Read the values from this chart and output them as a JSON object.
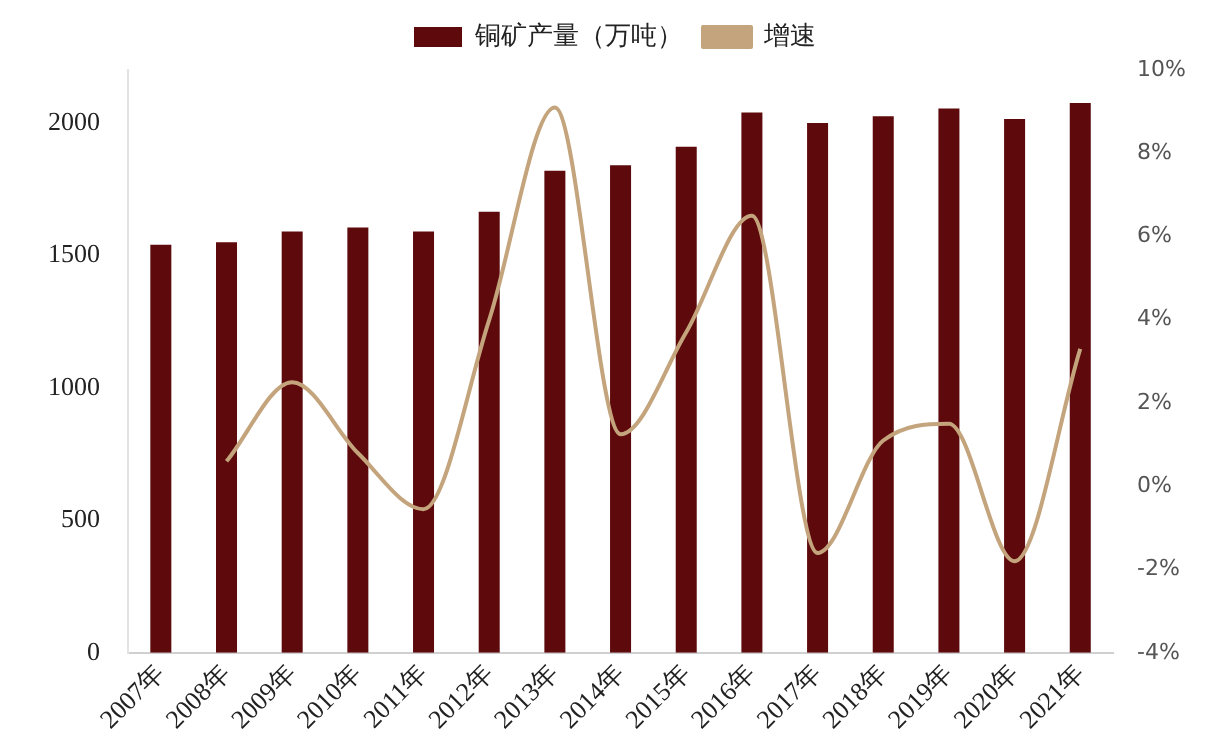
{
  "chart_data": {
    "type": "bar",
    "categories": [
      "2007年",
      "2008年",
      "2009年",
      "2010年",
      "2011年",
      "2012年",
      "2013年",
      "2014年",
      "2015年",
      "2016年",
      "2017年",
      "2018年",
      "2019年",
      "2020年",
      "2021年"
    ],
    "series": [
      {
        "name": "铜矿产量（万吨）",
        "color": "#5e0a0c",
        "values": [
          1540,
          1550,
          1590,
          1605,
          1590,
          1665,
          1820,
          1840,
          1910,
          2040,
          2000,
          2025,
          2055,
          2015,
          2075
        ]
      },
      {
        "name": "增速",
        "type": "line",
        "axis": "y2",
        "color": "#c4a47c",
        "values": [
          null,
          0.6,
          2.5,
          0.8,
          -0.55,
          4.0,
          9.1,
          1.25,
          3.7,
          6.5,
          -1.6,
          1.1,
          1.5,
          -1.8,
          3.3
        ]
      }
    ],
    "ylim": [
      0,
      2200
    ],
    "yticks": [
      0,
      500,
      1000,
      1500,
      2000
    ],
    "y2lim": [
      -4,
      10
    ],
    "y2ticks": [
      {
        "value": -4,
        "label": "-4%"
      },
      {
        "value": -2,
        "label": "-2%"
      },
      {
        "value": 0,
        "label": "0%"
      },
      {
        "value": 2,
        "label": "2%"
      },
      {
        "value": 4,
        "label": "4%"
      },
      {
        "value": 6,
        "label": "6%"
      },
      {
        "value": 8,
        "label": "8%"
      },
      {
        "value": 10,
        "label": "10%"
      }
    ],
    "grid": false,
    "legend": "top",
    "marker": "none",
    "line_style": "solid"
  }
}
